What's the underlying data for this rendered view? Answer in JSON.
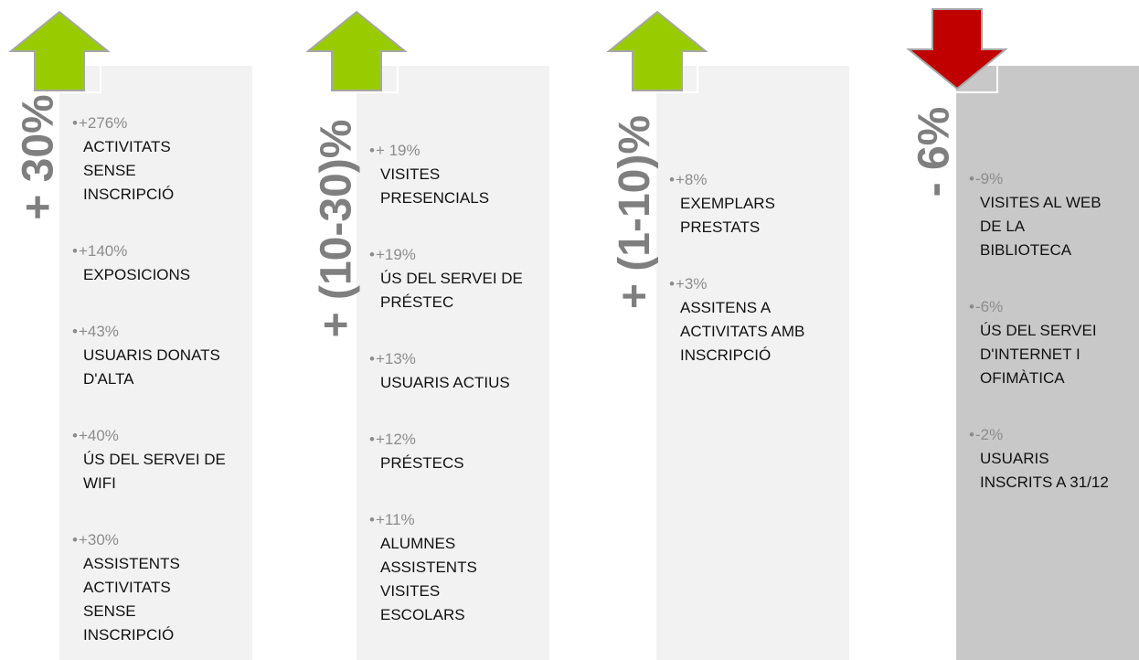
{
  "columns": [
    {
      "heading": "+ 30%",
      "direction": "up",
      "items": [
        {
          "change": "+276%",
          "label": [
            "ACTIVITATS",
            "SENSE",
            "INSCRIPCIÓ"
          ]
        },
        {
          "change": "+140%",
          "label": [
            "EXPOSICIONS"
          ]
        },
        {
          "change": "+43%",
          "label": [
            "USUARIS DONATS",
            "D'ALTA"
          ]
        },
        {
          "change": "+40%",
          "label": [
            "ÚS DEL SERVEI DE",
            "WIFI"
          ]
        },
        {
          "change": "+30%",
          "label": [
            "ASSISTENTS",
            "ACTIVITATS",
            "SENSE",
            "INSCRIPCIÓ"
          ]
        }
      ]
    },
    {
      "heading": "+ (10-30)%",
      "direction": "up",
      "items": [
        {
          "change": "+ 19%",
          "label": [
            "VISITES",
            "PRESENCIALS"
          ]
        },
        {
          "change": "+19%",
          "label": [
            "ÚS DEL SERVEI DE",
            "PRÉSTEC"
          ]
        },
        {
          "change": "+13%",
          "label": [
            "USUARIS ACTIUS"
          ]
        },
        {
          "change": "+12%",
          "label": [
            "PRÉSTECS"
          ]
        },
        {
          "change": "+11%",
          "label": [
            "ALUMNES",
            "ASSISTENTS",
            "VISITES",
            "ESCOLARS"
          ]
        }
      ]
    },
    {
      "heading": "+ (1-10)%",
      "direction": "up",
      "items": [
        {
          "change": "+8%",
          "label": [
            "EXEMPLARS",
            "PRESTATS"
          ]
        },
        {
          "change": "+3%",
          "label": [
            "ASSITENS A",
            "ACTIVITATS AMB",
            "INSCRIPCIÓ"
          ]
        }
      ]
    },
    {
      "heading": "- 6%",
      "direction": "down",
      "items": [
        {
          "change": "-9%",
          "label": [
            "VISITES AL WEB",
            "DE LA",
            "BIBLIOTECA"
          ]
        },
        {
          "change": "-6%",
          "label": [
            "ÚS DEL SERVEI",
            "D'INTERNET I",
            "OFIMÀTICA"
          ]
        },
        {
          "change": "-2%",
          "label": [
            "USUARIS",
            "INSCRITS A 31/12"
          ]
        }
      ]
    }
  ]
}
